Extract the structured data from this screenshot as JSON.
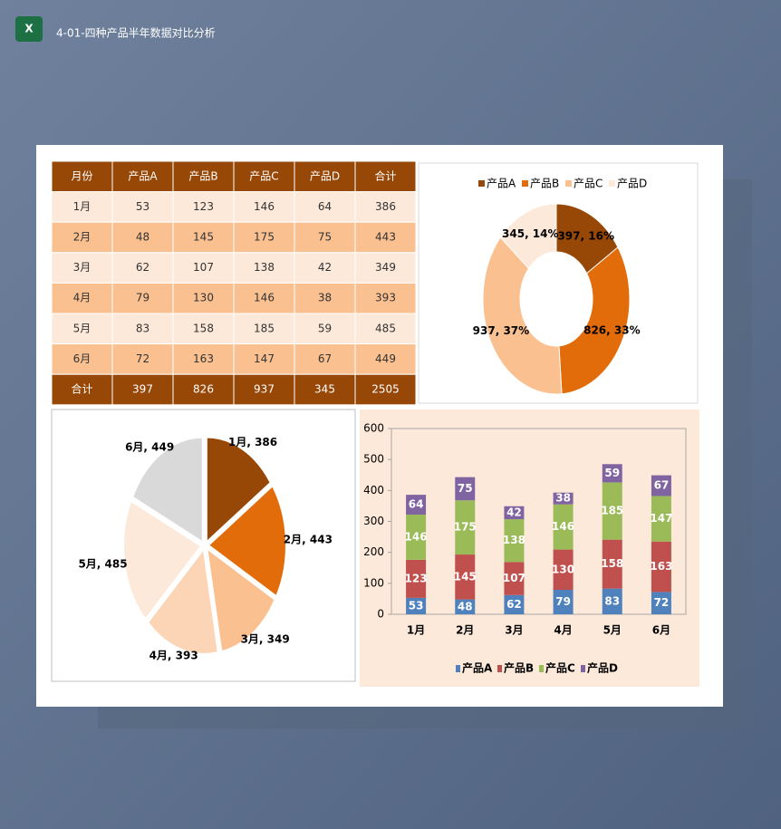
{
  "header": {
    "title": "4-01-四种产品半年数据对比分析"
  },
  "table": {
    "columns": [
      "月份",
      "产品A",
      "产品B",
      "产品C",
      "产品D",
      "合计"
    ],
    "rows": [
      [
        "1月",
        53,
        123,
        146,
        64,
        386
      ],
      [
        "2月",
        48,
        145,
        175,
        75,
        443
      ],
      [
        "3月",
        62,
        107,
        138,
        42,
        349
      ],
      [
        "4月",
        79,
        130,
        146,
        38,
        393
      ],
      [
        "5月",
        83,
        158,
        185,
        59,
        485
      ],
      [
        "6月",
        72,
        163,
        147,
        67,
        449
      ],
      [
        "合计",
        397,
        826,
        937,
        345,
        2505
      ]
    ]
  },
  "chart_data": [
    {
      "type": "donut",
      "categories": [
        "产品A",
        "产品B",
        "产品C",
        "产品D"
      ],
      "values": [
        397,
        826,
        937,
        345
      ],
      "value_labels": [
        "397, 16%",
        "826, 33%",
        "937, 37%",
        "345, 14%"
      ],
      "colors": [
        "#974706",
        "#e36c0a",
        "#fac090",
        "#fde9d9"
      ],
      "legend": "top"
    },
    {
      "type": "pie",
      "values": [
        386,
        443,
        349,
        393,
        485,
        449
      ],
      "value_labels": [
        "1月, 386",
        "2月, 443",
        "3月, 349",
        "4月, 393",
        "5月, 485",
        "6月, 449"
      ],
      "colors": [
        "#974706",
        "#e36c0a",
        "#fac090",
        "#fbd5b5",
        "#fde9d9",
        "#d9d9d9"
      ]
    },
    {
      "type": "stacked-bar",
      "categories": [
        "1月",
        "2月",
        "3月",
        "4月",
        "5月",
        "6月"
      ],
      "series": [
        {
          "name": "产品A",
          "color": "#4f81bd",
          "values": [
            53,
            48,
            62,
            79,
            83,
            72
          ]
        },
        {
          "name": "产品B",
          "color": "#c0504d",
          "values": [
            123,
            145,
            107,
            130,
            158,
            163
          ]
        },
        {
          "name": "产品C",
          "color": "#9bbb59",
          "values": [
            146,
            175,
            138,
            146,
            185,
            147
          ]
        },
        {
          "name": "产品D",
          "color": "#8064a2",
          "values": [
            64,
            75,
            42,
            38,
            59,
            67
          ]
        }
      ],
      "ylim": [
        0,
        600
      ],
      "yticks": [
        0,
        100,
        200,
        300,
        400,
        500,
        600
      ],
      "legend": "bottom"
    }
  ]
}
